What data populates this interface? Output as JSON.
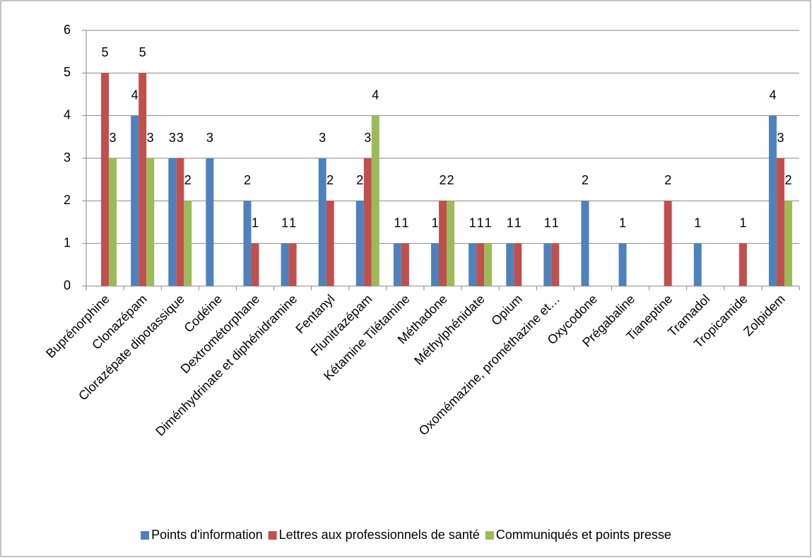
{
  "chart_data": {
    "type": "bar",
    "categories": [
      "Buprénorphine",
      "Clonazépam",
      "Clorazépate dipotassique",
      "Codéine",
      "Dextrométorphane",
      "Diménhydrinate et diphénidramine",
      "Fentanyl",
      "Flunitrazépam",
      "Kétamine Tilétamine",
      "Méthadone",
      "Méthylphénidate",
      "Opium",
      "Oxomémazine, prométhazine et…",
      "Oxycodone",
      "Prégabaline",
      "Tianeptine",
      "Tramadol",
      "Tropicamide",
      "Zolpidem"
    ],
    "series": [
      {
        "name": "Points d'information",
        "color": "#4f81bd",
        "values": [
          null,
          4,
          3,
          3,
          2,
          1,
          3,
          2,
          1,
          1,
          1,
          1,
          1,
          2,
          1,
          null,
          1,
          null,
          4
        ]
      },
      {
        "name": "Lettres aux professionnels de santé",
        "color": "#c0504d",
        "values": [
          5,
          5,
          3,
          null,
          1,
          1,
          2,
          3,
          1,
          2,
          1,
          1,
          1,
          null,
          null,
          2,
          null,
          1,
          3
        ]
      },
      {
        "name": "Communiqués et points presse",
        "color": "#9bbb59",
        "values": [
          3,
          3,
          2,
          null,
          null,
          null,
          null,
          4,
          null,
          2,
          1,
          null,
          null,
          null,
          null,
          null,
          null,
          null,
          2
        ]
      }
    ],
    "ylim": [
      0,
      6
    ],
    "yticks": [
      0,
      1,
      2,
      3,
      4,
      5,
      6
    ],
    "grid": true,
    "legend": "bottom"
  }
}
